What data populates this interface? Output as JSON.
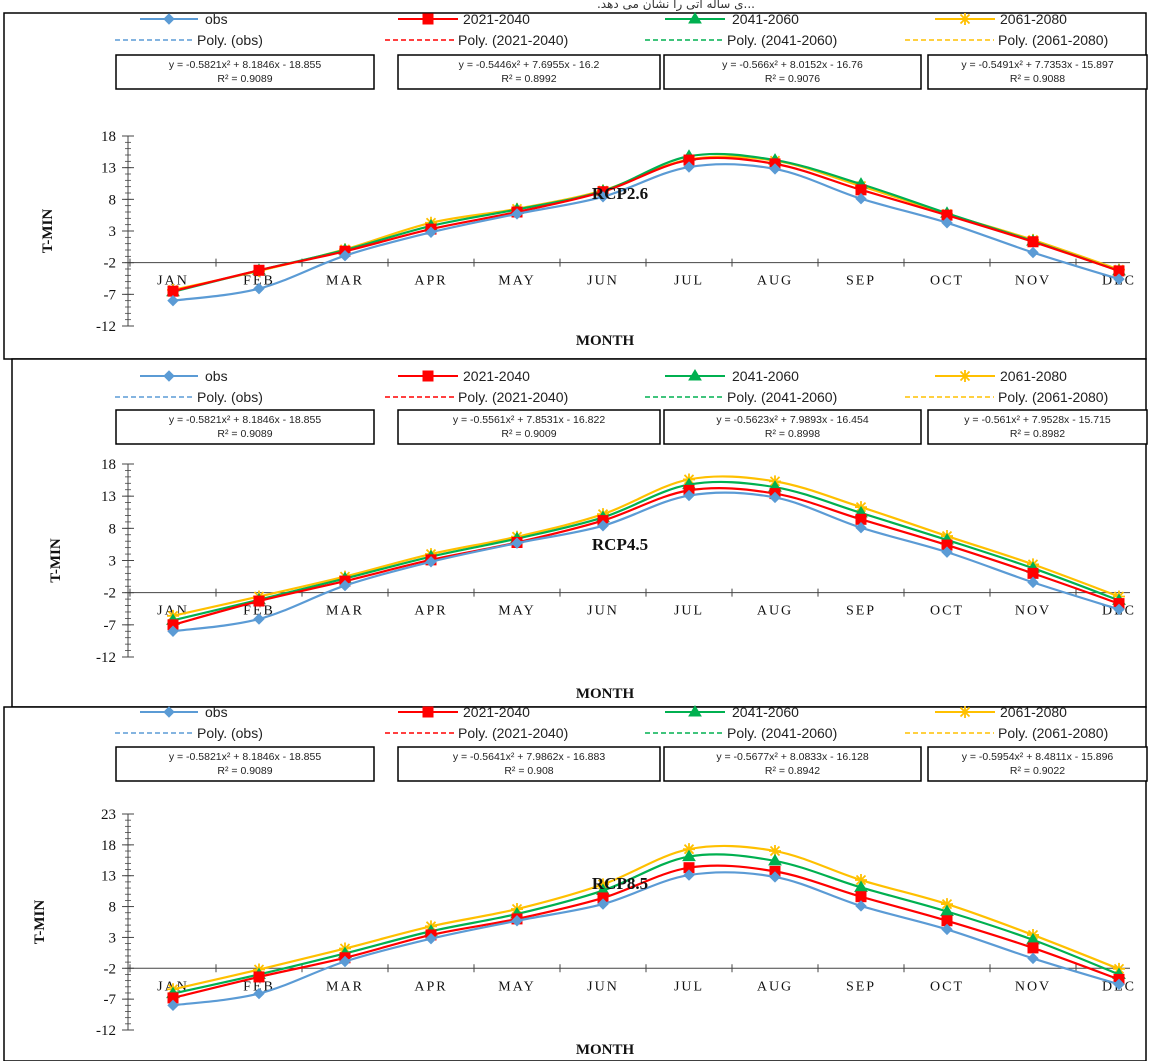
{
  "top_fragment": "...ی ساله آتی را نشان می دهد.",
  "colors": {
    "obs": "#5b9bd5",
    "2021-2040": "#ff0000",
    "2041-2060": "#00b050",
    "2061-2080": "#ffc000"
  },
  "chart_data": [
    {
      "type": "line",
      "scenario_label": "RCP2.6",
      "ylabel": "T-MIN",
      "xlabel": "MONTH",
      "ylim": [
        -12,
        18
      ],
      "yticks": [
        -12,
        -7,
        -2,
        3,
        8,
        13,
        18
      ],
      "categories": [
        "JAN",
        "FEB",
        "MAR",
        "APR",
        "MAY",
        "JUN",
        "JUL",
        "AUG",
        "SEP",
        "OCT",
        "NOV",
        "DEC"
      ],
      "legend": [
        "obs",
        "2021-2040",
        "2041-2060",
        "2061-2080",
        "Poly. (obs)",
        "Poly. (2021-2040)",
        "Poly. (2041-2060)",
        "Poly. (2061-2080)"
      ],
      "series": [
        {
          "name": "obs",
          "values": [
            -8,
            -6.1,
            -0.9,
            2.8,
            5.7,
            8.4,
            13.1,
            12.8,
            8.1,
            4.3,
            -0.4,
            -4.6
          ]
        },
        {
          "name": "2021-2040",
          "values": [
            -6.5,
            -3.2,
            -0.2,
            3.3,
            6,
            9.2,
            14.2,
            13.6,
            9.5,
            5.5,
            1.3,
            -3.3
          ]
        },
        {
          "name": "2041-2060",
          "values": [
            -6.6,
            -3.2,
            0,
            3.8,
            6.4,
            9.3,
            14.8,
            14.2,
            10.4,
            5.8,
            1.4,
            -3.3
          ]
        },
        {
          "name": "2061-2080",
          "values": [
            -6.3,
            -3.3,
            0.1,
            4.3,
            6.5,
            9.4,
            14.3,
            14.1,
            10.1,
            5.7,
            1.6,
            -3.1
          ]
        }
      ],
      "trendlines": [
        {
          "name": "Poly. (obs)",
          "equation": "y = -0.5821x² + 8.1846x - 18.855",
          "r2": "R² = 0.9089"
        },
        {
          "name": "Poly. (2021-2040)",
          "equation": "y = -0.5446x² + 7.6955x - 16.2",
          "r2": "R² = 0.8992"
        },
        {
          "name": "Poly. (2041-2060)",
          "equation": "y = -0.566x² + 8.0152x - 16.76",
          "r2": "R² = 0.9076"
        },
        {
          "name": "Poly. (2061-2080)",
          "equation": "y = -0.5491x² + 7.7353x - 15.897",
          "r2": "R² = 0.9088"
        }
      ]
    },
    {
      "type": "line",
      "scenario_label": "RCP4.5",
      "ylabel": "T-MIN",
      "xlabel": "MONTH",
      "ylim": [
        -12,
        18
      ],
      "yticks": [
        -12,
        -7,
        -2,
        3,
        8,
        13,
        18
      ],
      "categories": [
        "JAN",
        "FEB",
        "MAR",
        "APR",
        "MAY",
        "JUN",
        "JUL",
        "AUG",
        "SEP",
        "OCT",
        "NOV",
        "DEC"
      ],
      "legend": [
        "obs",
        "2021-2040",
        "2041-2060",
        "2061-2080",
        "Poly. (obs)",
        "Poly. (2021-2040)",
        "Poly. (2041-2060)",
        "Poly. (2061-2080)"
      ],
      "series": [
        {
          "name": "obs",
          "values": [
            -8,
            -6.1,
            -0.9,
            2.8,
            5.7,
            8.4,
            13.1,
            12.8,
            8.1,
            4.3,
            -0.4,
            -4.6
          ]
        },
        {
          "name": "2021-2040",
          "values": [
            -7,
            -3.3,
            -0.2,
            3.1,
            5.8,
            9.2,
            13.9,
            13.4,
            9.4,
            5.4,
            1,
            -3.7
          ]
        },
        {
          "name": "2041-2060",
          "values": [
            -6.3,
            -3.1,
            0.2,
            3.6,
            6.4,
            9.7,
            14.8,
            14.4,
            10.4,
            6.2,
            1.8,
            -3.2
          ]
        },
        {
          "name": "2061-2080",
          "values": [
            -5.6,
            -2.6,
            0.5,
            4,
            6.7,
            10.2,
            15.6,
            15.3,
            11.3,
            6.8,
            2.4,
            -2.6
          ]
        }
      ],
      "trendlines": [
        {
          "name": "Poly. (obs)",
          "equation": "y = -0.5821x² + 8.1846x - 18.855",
          "r2": "R² = 0.9089"
        },
        {
          "name": "Poly. (2021-2040)",
          "equation": "y = -0.5561x² + 7.8531x - 16.822",
          "r2": "R² = 0.9009"
        },
        {
          "name": "Poly. (2041-2060)",
          "equation": "y = -0.5623x² + 7.9893x - 16.454",
          "r2": "R² = 0.8998"
        },
        {
          "name": "Poly. (2061-2080)",
          "equation": "y = -0.561x² + 7.9528x - 15.715",
          "r2": "R² = 0.8982"
        }
      ]
    },
    {
      "type": "line",
      "scenario_label": "RCP8.5",
      "ylabel": "T-MIN",
      "xlabel": "MONTH",
      "ylim": [
        -12,
        23
      ],
      "yticks": [
        -12,
        -7,
        -2,
        3,
        8,
        13,
        18,
        23
      ],
      "categories": [
        "JAN",
        "FEB",
        "MAR",
        "APR",
        "MAY",
        "JUN",
        "JUL",
        "AUG",
        "SEP",
        "OCT",
        "NOV",
        "DEC"
      ],
      "legend": [
        "obs",
        "2021-2040",
        "2041-2060",
        "2061-2080",
        "Poly. (obs)",
        "Poly. (2021-2040)",
        "Poly. (2041-2060)",
        "Poly. (2061-2080)"
      ],
      "series": [
        {
          "name": "obs",
          "values": [
            -8,
            -6.1,
            -0.9,
            2.8,
            5.7,
            8.4,
            13.1,
            12.8,
            8.1,
            4.3,
            -0.4,
            -4.6
          ]
        },
        {
          "name": "2021-2040",
          "values": [
            -6.8,
            -3.4,
            -0.3,
            3.4,
            6,
            9.4,
            14.3,
            13.7,
            9.6,
            5.7,
            1.3,
            -3.8
          ]
        },
        {
          "name": "2041-2060",
          "values": [
            -6.1,
            -3,
            0.4,
            4,
            6.8,
            10.6,
            16.1,
            15.4,
            11.1,
            7.2,
            2.6,
            -3
          ]
        },
        {
          "name": "2061-2080",
          "values": [
            -5.4,
            -2.2,
            1.2,
            4.8,
            7.6,
            11.6,
            17.3,
            17,
            12.3,
            8.4,
            3.4,
            -2.1
          ]
        }
      ],
      "trendlines": [
        {
          "name": "Poly. (obs)",
          "equation": "y = -0.5821x² + 8.1846x - 18.855",
          "r2": "R² = 0.9089"
        },
        {
          "name": "Poly. (2021-2040)",
          "equation": "y = -0.5641x² + 7.9862x - 16.883",
          "r2": "R² = 0.908"
        },
        {
          "name": "Poly. (2041-2060)",
          "equation": "y = -0.5677x² + 8.0833x - 16.128",
          "r2": "R² = 0.8942"
        },
        {
          "name": "Poly. (2061-2080)",
          "equation": "y = -0.5954x² + 8.4811x - 15.896",
          "r2": "R² = 0.9022"
        }
      ]
    }
  ]
}
